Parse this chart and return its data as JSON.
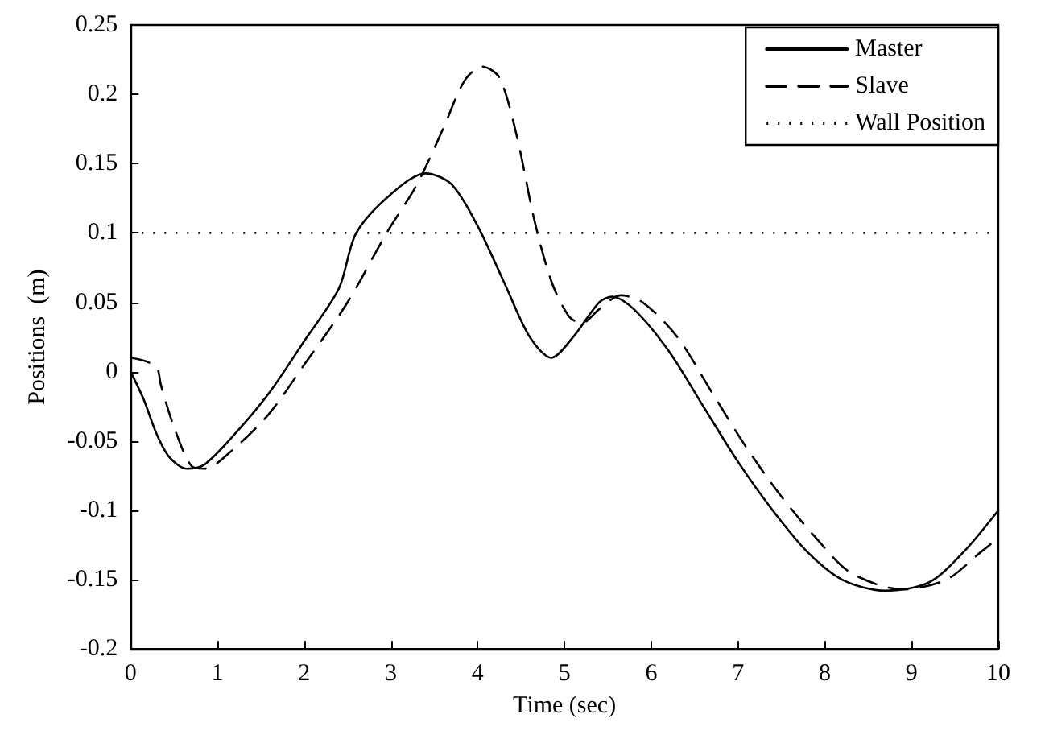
{
  "chart_data": {
    "type": "line",
    "xlabel": "Time (sec)",
    "ylabel": "Positions  (m)",
    "xlim": [
      0,
      10
    ],
    "xticks": [
      0,
      1,
      2,
      3,
      4,
      5,
      6,
      7,
      8,
      9,
      10
    ],
    "ylim": [
      -0.2,
      0.25
    ],
    "yticks": [
      -0.2,
      -0.15,
      -0.1,
      -0.05,
      0,
      0.05,
      0.1,
      0.15,
      0.2,
      0.25
    ],
    "grid": false,
    "legend": "top right",
    "marker": "none",
    "series": [
      {
        "name": "Master",
        "color": "#000000",
        "line_style": "solid",
        "x": [
          0,
          0.15,
          0.3,
          0.45,
          0.65,
          0.85,
          1.2,
          1.6,
          2,
          2.4,
          2.6,
          3,
          3.4,
          3.7,
          4,
          4.3,
          4.6,
          4.85,
          5.1,
          5.4,
          5.55,
          5.8,
          6.2,
          6.6,
          7,
          7.4,
          7.8,
          8.2,
          8.7,
          9.2,
          9.6,
          10
        ],
        "values": [
          0,
          -0.02,
          -0.045,
          -0.062,
          -0.07,
          -0.067,
          -0.045,
          -0.015,
          0.022,
          0.06,
          0.1,
          0.128,
          0.143,
          0.135,
          0.105,
          0.065,
          0.025,
          0.01,
          0.025,
          0.05,
          0.054,
          0.045,
          0.015,
          -0.025,
          -0.065,
          -0.1,
          -0.13,
          -0.15,
          -0.158,
          -0.152,
          -0.13,
          -0.1
        ]
      },
      {
        "name": "Slave",
        "color": "#000000",
        "line_style": "dashed",
        "x": [
          0,
          0.15,
          0.3,
          0.35,
          0.5,
          0.7,
          0.85,
          1.2,
          1.6,
          2,
          2.5,
          2.95,
          3.3,
          3.6,
          3.85,
          4.05,
          4.25,
          4.45,
          4.65,
          4.85,
          5.05,
          5.2,
          5.4,
          5.65,
          5.9,
          6.3,
          6.7,
          7.1,
          7.5,
          7.9,
          8.3,
          8.9,
          9.4,
          9.8,
          10
        ],
        "values": [
          0.01,
          0.008,
          0.003,
          -0.01,
          -0.04,
          -0.068,
          -0.07,
          -0.055,
          -0.03,
          0.005,
          0.05,
          0.1,
          0.135,
          0.175,
          0.21,
          0.22,
          0.212,
          0.17,
          0.11,
          0.065,
          0.04,
          0.035,
          0.045,
          0.055,
          0.05,
          0.025,
          -0.015,
          -0.055,
          -0.09,
          -0.12,
          -0.145,
          -0.157,
          -0.15,
          -0.13,
          -0.12
        ]
      }
    ],
    "ref_lines": [
      {
        "axis": "y",
        "value": 0.1,
        "label": "Wall Position",
        "color": "#000000",
        "line_style": "dotted"
      }
    ]
  }
}
